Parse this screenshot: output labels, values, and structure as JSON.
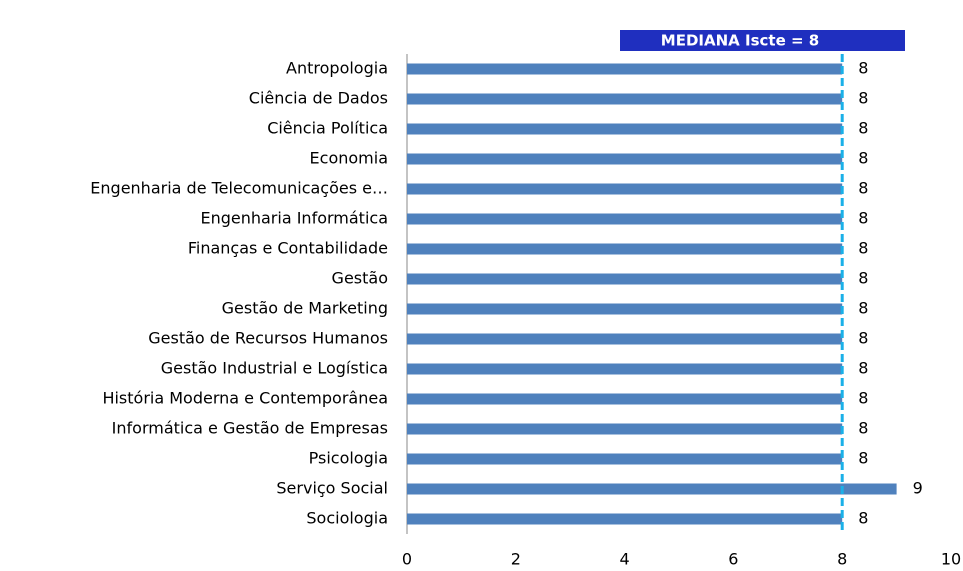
{
  "chart_data": {
    "type": "bar",
    "orientation": "horizontal",
    "categories": [
      "Antropologia",
      "Ciência de Dados",
      "Ciência Política",
      "Economia",
      "Engenharia de Telecomunicações e…",
      "Engenharia Informática",
      "Finanças e Contabilidade",
      "Gestão",
      "Gestão de Marketing",
      "Gestão de Recursos Humanos",
      "Gestão Industrial e Logística",
      "História Moderna e Contemporânea",
      "Informática e Gestão de Empresas",
      "Psicologia",
      "Serviço Social",
      "Sociologia"
    ],
    "values": [
      8,
      8,
      8,
      8,
      8,
      8,
      8,
      8,
      8,
      8,
      8,
      8,
      8,
      8,
      9,
      8
    ],
    "color": "#4f81bd",
    "xlim": [
      0,
      10
    ],
    "xticks": [
      0,
      2,
      4,
      6,
      8,
      10
    ],
    "median": {
      "label": "MEDIANA Iscte = 8",
      "value": 8,
      "color": "#1ab0e8",
      "box_color": "#1f2fbf"
    }
  }
}
